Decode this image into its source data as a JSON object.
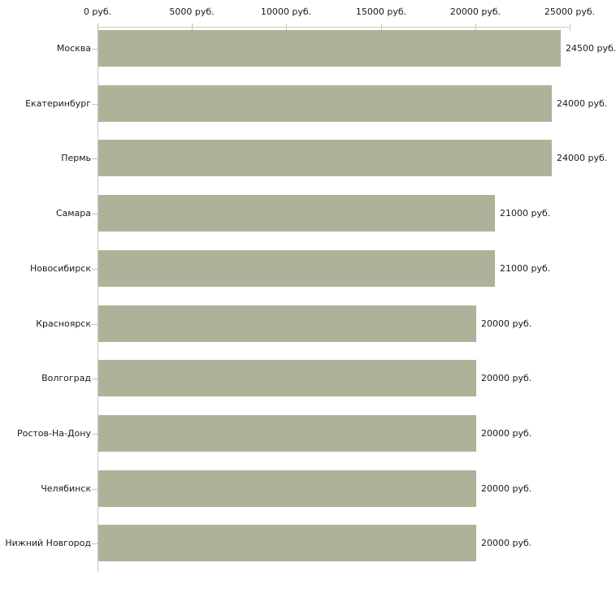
{
  "chart_data": {
    "type": "bar",
    "orientation": "horizontal",
    "title": "",
    "xlabel": "",
    "ylabel": "",
    "grid": false,
    "legend": false,
    "categories": [
      "Москва",
      "Екатеринбург",
      "Пермь",
      "Самара",
      "Новосибирск",
      "Красноярск",
      "Волгоград",
      "Ростов-На-Дону",
      "Челябинск",
      "Нижний Новгород"
    ],
    "values": [
      24500,
      24000,
      24000,
      21000,
      21000,
      20000,
      20000,
      20000,
      20000,
      20000
    ],
    "value_labels": [
      "24500 руб.",
      "24000 руб.",
      "24000 руб.",
      "21000 руб.",
      "21000 руб.",
      "20000 руб.",
      "20000 руб.",
      "20000 руб.",
      "20000 руб.",
      "20000 руб."
    ],
    "x_axis": {
      "position": "top",
      "min": 0,
      "max": 25000,
      "tick_values": [
        0,
        5000,
        10000,
        15000,
        20000,
        25000
      ],
      "tick_labels": [
        "0 руб.",
        "5000 руб.",
        "10000 руб.",
        "15000 руб.",
        "20000 руб.",
        "25000 руб."
      ]
    },
    "colors": {
      "bar": "#adb398",
      "axis_line": "#c9c9c9",
      "tick_mark": "#c6c6a0",
      "text": "#1a1a1a",
      "background": "#ffffff"
    }
  }
}
